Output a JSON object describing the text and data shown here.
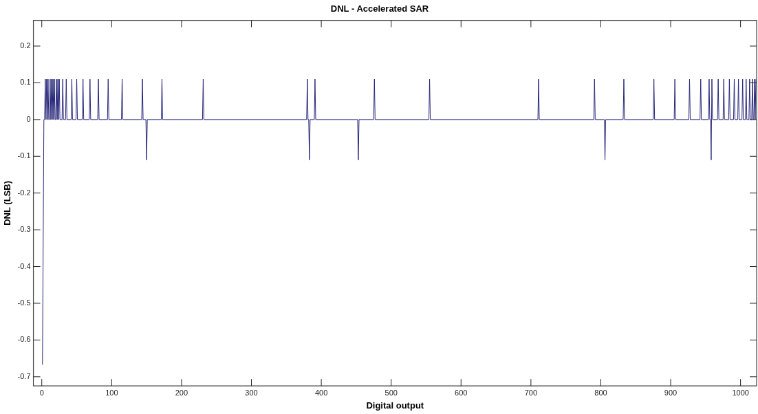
{
  "chart_data": {
    "type": "line",
    "title": "DNL - Accelerated SAR",
    "xlabel": "Digital output",
    "ylabel": "DNL (LSB)",
    "xlim": [
      -12,
      1023
    ],
    "ylim": [
      -0.725,
      0.27
    ],
    "xticks": [
      0,
      100,
      200,
      300,
      400,
      500,
      600,
      700,
      800,
      900,
      1000
    ],
    "yticks": [
      -0.7,
      -0.6,
      -0.5,
      -0.4,
      -0.3,
      -0.2,
      -0.1,
      0,
      0.1,
      0.2
    ],
    "grid": false,
    "legend": false,
    "line_style": "solid",
    "series": [
      {
        "color": "#27277a",
        "x": [
          1,
          2,
          3,
          4,
          5,
          6,
          7,
          8,
          9,
          10,
          11,
          12,
          13,
          14,
          15,
          16,
          17,
          18,
          19,
          20,
          21,
          22,
          23,
          24,
          25,
          26,
          29,
          30,
          31,
          34,
          35,
          36,
          42,
          43,
          44,
          49,
          50,
          51,
          58,
          59,
          60,
          68,
          69,
          70,
          80,
          81,
          82,
          94,
          95,
          96,
          114,
          115,
          116,
          143,
          144,
          145,
          149,
          150,
          151,
          171,
          172,
          173,
          230,
          231,
          232,
          379,
          380,
          381,
          382,
          383,
          384,
          390,
          391,
          392,
          452,
          453,
          454,
          475,
          476,
          477,
          554,
          555,
          556,
          710,
          711,
          712,
          790,
          791,
          792,
          805,
          806,
          807,
          832,
          833,
          834,
          875,
          876,
          877,
          905,
          906,
          907,
          926,
          927,
          928,
          942,
          943,
          944,
          954,
          955,
          956,
          957,
          958,
          959,
          960,
          967,
          968,
          969,
          975,
          976,
          977,
          983,
          984,
          985,
          990,
          991,
          992,
          996,
          997,
          998,
          1002,
          1003,
          1004,
          1007,
          1008,
          1009,
          1012,
          1013,
          1014,
          1016,
          1017,
          1018,
          1019,
          1020,
          1021,
          1022
        ],
        "values": [
          -0.667,
          -0.333,
          0,
          0,
          0.11,
          0,
          0.11,
          0,
          0.11,
          0,
          0,
          0.11,
          0,
          0.11,
          0,
          0.11,
          0,
          0.11,
          0,
          0,
          0.11,
          0,
          0.11,
          0,
          0.11,
          0,
          0,
          0.11,
          0,
          0,
          0.11,
          0,
          0,
          0.11,
          0,
          0,
          0.11,
          0,
          0,
          0.11,
          0,
          0,
          0.11,
          0,
          0,
          0.11,
          0,
          0,
          0.11,
          0,
          0,
          0.11,
          0,
          0,
          0.11,
          0,
          0,
          -0.11,
          0,
          0,
          0.11,
          0,
          0,
          0.11,
          0,
          0,
          0.11,
          0,
          0,
          -0.11,
          0,
          0,
          0.11,
          0,
          0,
          -0.11,
          0,
          0,
          0.11,
          0,
          0,
          0.11,
          0,
          0,
          0.11,
          0,
          0,
          0.11,
          0,
          0,
          -0.11,
          0,
          0,
          0.11,
          0,
          0,
          0.11,
          0,
          0,
          0.11,
          0,
          0,
          0.11,
          0,
          0,
          0.11,
          0,
          0,
          0.11,
          0,
          0,
          -0.11,
          0.11,
          0,
          0,
          0.11,
          0,
          0,
          0.11,
          0,
          0,
          0.11,
          0,
          0,
          0.11,
          0,
          0,
          0.11,
          0,
          0,
          0.11,
          0,
          0,
          0.11,
          0,
          0,
          0.11,
          0,
          0,
          0.11,
          0,
          0,
          0.11,
          0,
          0.11
        ]
      }
    ]
  }
}
